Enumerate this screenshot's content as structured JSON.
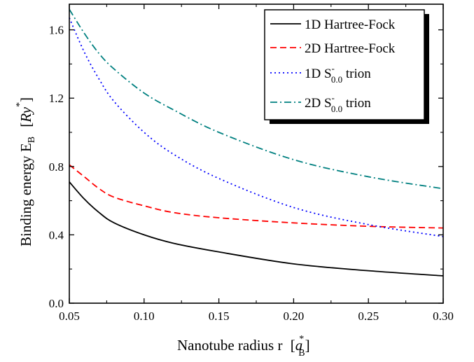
{
  "chart_data": {
    "type": "line",
    "xlabel": {
      "main": "Nanotube radius r",
      "bracket_base": "a",
      "bracket_sub": "B",
      "bracket_sup": "*"
    },
    "ylabel": {
      "main": "Binding energy E",
      "main_sub": "B",
      "bracket_base": "Ry",
      "bracket_sup": "*"
    },
    "xlim": [
      0.05,
      0.3
    ],
    "ylim": [
      0.0,
      1.75
    ],
    "xticks": [
      "0.05",
      "0.10",
      "0.15",
      "0.20",
      "0.25",
      "0.30"
    ],
    "yticks": [
      "0.0",
      "0.4",
      "0.8",
      "1.2",
      "1.6"
    ],
    "legend_position": "top-right",
    "series": [
      {
        "name": "1D Hartree-Fock",
        "legend": {
          "pre": "1D Hartree-Fock"
        },
        "color": "#000000",
        "dash": "solid",
        "x": [
          0.05,
          0.06,
          0.07,
          0.08,
          0.1,
          0.12,
          0.15,
          0.2,
          0.25,
          0.3
        ],
        "y": [
          0.71,
          0.61,
          0.53,
          0.47,
          0.4,
          0.35,
          0.3,
          0.23,
          0.19,
          0.16
        ]
      },
      {
        "name": "2D Hartree-Fock",
        "legend": {
          "pre": "2D Hartree-Fock"
        },
        "color": "#ff0000",
        "dash": "dashed",
        "x": [
          0.05,
          0.06,
          0.07,
          0.08,
          0.1,
          0.12,
          0.15,
          0.2,
          0.25,
          0.3
        ],
        "y": [
          0.81,
          0.74,
          0.67,
          0.62,
          0.57,
          0.53,
          0.5,
          0.47,
          0.45,
          0.44
        ]
      },
      {
        "name": "1D S0.0- trion",
        "legend": {
          "pre": "1D S",
          "sub": "0.0",
          "sup": "-",
          "post": " trion"
        },
        "color": "#0000ff",
        "dash": "dotted",
        "x": [
          0.05,
          0.06,
          0.07,
          0.08,
          0.1,
          0.12,
          0.15,
          0.2,
          0.25,
          0.3
        ],
        "y": [
          1.67,
          1.47,
          1.31,
          1.18,
          1.0,
          0.87,
          0.73,
          0.56,
          0.46,
          0.39
        ]
      },
      {
        "name": "2D S0.0- trion",
        "legend": {
          "pre": "2D S",
          "sub": "0.0",
          "sup": "-",
          "post": " trion"
        },
        "color": "#008080",
        "dash": "dashdot",
        "x": [
          0.05,
          0.06,
          0.07,
          0.08,
          0.1,
          0.12,
          0.15,
          0.2,
          0.25,
          0.3
        ],
        "y": [
          1.72,
          1.58,
          1.46,
          1.37,
          1.23,
          1.13,
          1.0,
          0.84,
          0.74,
          0.67
        ]
      }
    ]
  }
}
